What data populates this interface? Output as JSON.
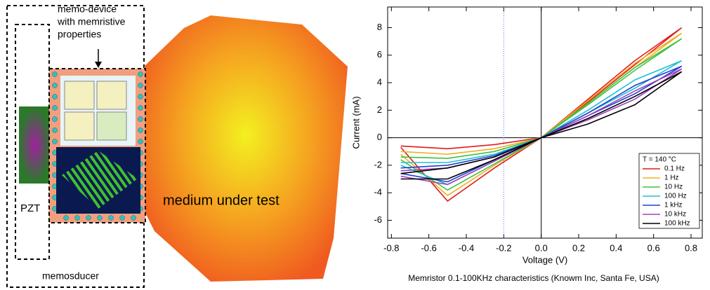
{
  "diagram": {
    "device_label": [
      "memo-device",
      "with memristive",
      "properties"
    ],
    "pzt": "PZT",
    "memosducer": "memosducer",
    "medium": "medium under test"
  },
  "chart_data": {
    "type": "line",
    "x_label": "Voltage (V)",
    "y_label": "Current (mA)",
    "caption": "Memristor 0.1-100KHz characteristics (Knowm Inc, Santa Fe, USA)",
    "legend_title": "T = 140 °C",
    "legend": "lower right",
    "grid": false,
    "ref_line_x": -0.2,
    "x": [
      -0.75,
      -0.5,
      -0.25,
      0,
      0.25,
      0.5,
      0.75,
      0.5,
      0.25,
      0,
      -0.25,
      -0.5,
      -0.75
    ],
    "series": [
      {
        "name": "0.1 Hz",
        "color": "#e41a1c",
        "values": [
          -0.7,
          -4.6,
          -2.2,
          0,
          2.6,
          5.3,
          8.0,
          5.6,
          2.8,
          0,
          -0.5,
          -0.8,
          -0.6
        ]
      },
      {
        "name": "1 Hz",
        "color": "#f0b020",
        "values": [
          -1.2,
          -4.2,
          -2.0,
          0,
          2.5,
          5.1,
          7.6,
          5.4,
          2.7,
          0,
          -0.8,
          -1.2,
          -1.0
        ]
      },
      {
        "name": "10 Hz",
        "color": "#40c040",
        "values": [
          -1.6,
          -3.8,
          -1.9,
          0,
          2.4,
          4.9,
          7.2,
          5.1,
          2.5,
          0,
          -1.0,
          -1.5,
          -1.4
        ]
      },
      {
        "name": "100 Hz",
        "color": "#20c0d0",
        "values": [
          -2.0,
          -3.4,
          -1.7,
          0,
          1.8,
          3.6,
          5.6,
          4.2,
          2.0,
          0,
          -1.2,
          -1.8,
          -1.8
        ]
      },
      {
        "name": "1 kHz",
        "color": "#2040d0",
        "values": [
          -2.6,
          -3.2,
          -1.6,
          0,
          1.6,
          3.2,
          5.2,
          3.8,
          1.8,
          0,
          -1.3,
          -2.0,
          -2.2
        ]
      },
      {
        "name": "10 kHz",
        "color": "#a040c0",
        "values": [
          -2.8,
          -3.4,
          -1.7,
          0,
          1.3,
          2.8,
          5.0,
          3.4,
          1.6,
          0,
          -1.4,
          -2.2,
          -2.4
        ]
      },
      {
        "name": "100 kHz",
        "color": "#000000",
        "values": [
          -3.0,
          -3.0,
          -1.6,
          0,
          1.0,
          2.4,
          4.8,
          3.0,
          1.4,
          0,
          -1.4,
          -2.2,
          -2.6
        ]
      }
    ],
    "xlim": [
      -0.82,
      0.86
    ],
    "ylim": [
      -7.3,
      9.5
    ],
    "xticks": [
      -0.8,
      -0.6,
      -0.4,
      -0.2,
      {
        "value": 0,
        "label": "0.0"
      },
      0.2,
      0.4,
      0.6,
      0.8
    ],
    "yticks": [
      -6,
      -4,
      -2,
      0,
      2,
      4,
      6,
      8
    ]
  }
}
